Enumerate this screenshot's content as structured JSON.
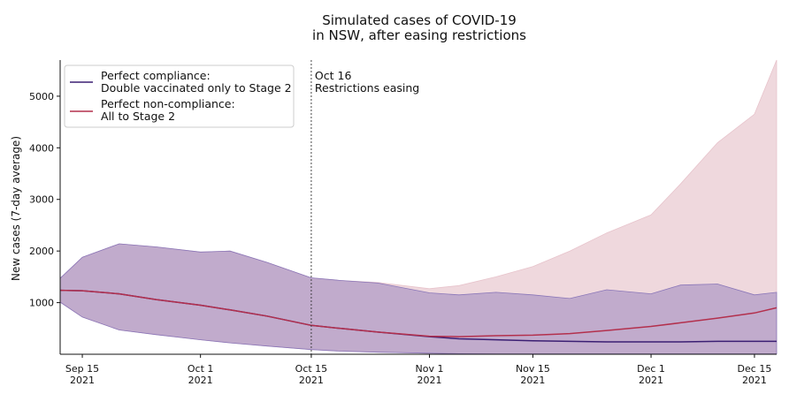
{
  "chart_data": {
    "type": "area",
    "title": "Simulated cases of COVID-19\nin NSW, after easing restrictions",
    "title_lines": [
      "Simulated cases of COVID-19",
      "in NSW, after easing restrictions"
    ],
    "ylabel": "New cases (7-day average)",
    "xlabel": "",
    "xlim": [
      "2021-09-12",
      "2021-12-18"
    ],
    "ylim": [
      0,
      5700
    ],
    "y_ticks": [
      1000,
      2000,
      3000,
      4000,
      5000
    ],
    "y_tick_labels": [
      "1000",
      "2000",
      "3000",
      "4000",
      "5000"
    ],
    "x_ticks": [
      "2021-09-15",
      "2021-10-01",
      "2021-10-16",
      "2021-11-01",
      "2021-11-15",
      "2021-12-01",
      "2021-12-15"
    ],
    "x_tick_labels": [
      {
        "line1": "Sep 15",
        "line2": "2021"
      },
      {
        "line1": "Oct 1",
        "line2": "2021"
      },
      {
        "line1": "Oct 15",
        "line2": "2021"
      },
      {
        "line1": "Nov 1",
        "line2": "2021"
      },
      {
        "line1": "Nov 15",
        "line2": "2021"
      },
      {
        "line1": "Dec 1",
        "line2": "2021"
      },
      {
        "line1": "Dec 15",
        "line2": "2021"
      }
    ],
    "grid": false,
    "legend_position": "top-left",
    "annotation": {
      "date": "2021-10-16",
      "lines": [
        "Oct 16",
        "Restrictions easing"
      ]
    },
    "series": [
      {
        "name": "Perfect compliance:\nDouble vaccinated only to Stage 2",
        "legend_lines": [
          "Perfect compliance:",
          "Double vaccinated only to Stage 2"
        ],
        "color": "#3b1f73",
        "band_color": "#8a76b8",
        "x": [
          "2021-09-12",
          "2021-09-15",
          "2021-09-20",
          "2021-09-25",
          "2021-10-01",
          "2021-10-05",
          "2021-10-10",
          "2021-10-16",
          "2021-10-20",
          "2021-10-25",
          "2021-11-01",
          "2021-11-05",
          "2021-11-10",
          "2021-11-15",
          "2021-11-20",
          "2021-11-25",
          "2021-12-01",
          "2021-12-05",
          "2021-12-10",
          "2021-12-15",
          "2021-12-18"
        ],
        "y": [
          1240,
          1230,
          1170,
          1060,
          950,
          860,
          740,
          560,
          500,
          430,
          340,
          300,
          280,
          260,
          250,
          240,
          240,
          240,
          250,
          250,
          250
        ],
        "lower": [
          1010,
          720,
          470,
          380,
          280,
          220,
          160,
          90,
          60,
          40,
          20,
          10,
          5,
          5,
          5,
          5,
          5,
          5,
          5,
          5,
          5
        ],
        "upper": [
          1470,
          1880,
          2140,
          2080,
          1980,
          2000,
          1780,
          1480,
          1430,
          1380,
          1190,
          1150,
          1200,
          1150,
          1080,
          1250,
          1170,
          1340,
          1360,
          1150,
          1200
        ]
      },
      {
        "name": "Perfect non-compliance:\nAll to Stage 2",
        "legend_lines": [
          "Perfect non-compliance:",
          "All to Stage 2"
        ],
        "color": "#b3304d",
        "band_color": "#e7c3cb",
        "x": [
          "2021-09-12",
          "2021-09-15",
          "2021-09-20",
          "2021-09-25",
          "2021-10-01",
          "2021-10-05",
          "2021-10-10",
          "2021-10-16",
          "2021-10-20",
          "2021-10-25",
          "2021-11-01",
          "2021-11-05",
          "2021-11-10",
          "2021-11-15",
          "2021-11-20",
          "2021-11-25",
          "2021-12-01",
          "2021-12-05",
          "2021-12-10",
          "2021-12-15",
          "2021-12-18"
        ],
        "y": [
          1240,
          1230,
          1170,
          1060,
          950,
          860,
          740,
          560,
          500,
          430,
          350,
          340,
          360,
          370,
          400,
          460,
          540,
          610,
          700,
          800,
          900
        ],
        "lower": [
          1010,
          720,
          470,
          380,
          280,
          220,
          160,
          90,
          60,
          40,
          20,
          10,
          5,
          5,
          5,
          5,
          5,
          5,
          5,
          5,
          5
        ],
        "upper": [
          1470,
          1880,
          2140,
          2080,
          1980,
          2000,
          1780,
          1480,
          1430,
          1390,
          1270,
          1330,
          1500,
          1700,
          2000,
          2350,
          2700,
          3300,
          4100,
          4650,
          5700
        ]
      }
    ]
  }
}
